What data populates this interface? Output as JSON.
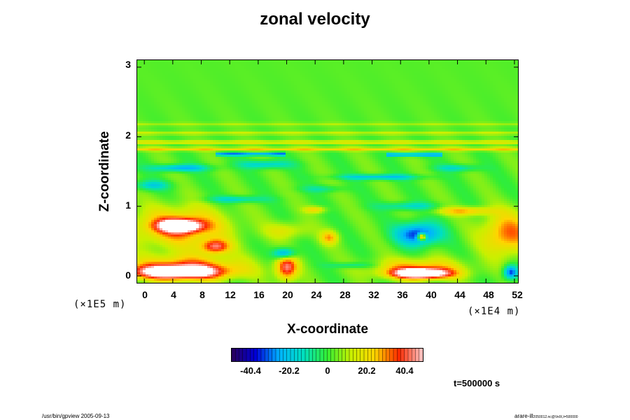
{
  "figure": {
    "title": "zonal velocity",
    "time_label": "t=500000 s",
    "footer_left": "/usr/bin/gpview 2005-09-13",
    "footer_right": "arare-ill",
    "footer_right_small": "2050012.nc@VelX,t=500000"
  },
  "chart_data": {
    "type": "heatmap",
    "title": "zonal velocity",
    "xlabel": "X-coordinate",
    "ylabel": "Z-coordinate",
    "x_unit": "(×1E4 m)",
    "y_unit": "(×1E5 m)",
    "x_ticks": [
      "0",
      "4",
      "8",
      "12",
      "16",
      "20",
      "24",
      "28",
      "32",
      "36",
      "40",
      "44",
      "48",
      "52"
    ],
    "y_ticks": [
      "0",
      "1",
      "2",
      "3"
    ],
    "xlim": [
      -1,
      52.5
    ],
    "ylim": [
      -0.1,
      3.1
    ],
    "colorbar": {
      "ticks": [
        "-40.4",
        "-20.2",
        "0",
        "20.2",
        "40.4"
      ],
      "tick_values": [
        -40.4,
        -20.2,
        0,
        20.2,
        40.4
      ],
      "range": [
        -52,
        52
      ],
      "colormap": [
        "#2a0059",
        "#0000d8",
        "#00b4ff",
        "#00e0c0",
        "#33ee33",
        "#c8f000",
        "#ffd400",
        "#ff2a00",
        "#ffc8c8"
      ]
    },
    "background_value": 3,
    "features": [
      {
        "x": 4.5,
        "z": 0.05,
        "value": 55,
        "rx": 6.5,
        "rz": 0.1
      },
      {
        "x": 6.0,
        "z": 0.13,
        "value": 30,
        "rx": 8.0,
        "rz": 0.17
      },
      {
        "x": 5.0,
        "z": 0.72,
        "value": 55,
        "rx": 3.0,
        "rz": 0.09
      },
      {
        "x": 5.0,
        "z": 0.7,
        "value": 32,
        "rx": 6.5,
        "rz": 0.28
      },
      {
        "x": 10.0,
        "z": 0.42,
        "value": 38,
        "rx": 2.0,
        "rz": 0.1
      },
      {
        "x": 20.0,
        "z": 0.12,
        "value": 42,
        "rx": 1.5,
        "rz": 0.18
      },
      {
        "x": 19.7,
        "z": 0.32,
        "value": -38,
        "rx": 1.5,
        "rz": 0.08
      },
      {
        "x": 39.0,
        "z": 0.03,
        "value": 60,
        "rx": 4.0,
        "rz": 0.07
      },
      {
        "x": 38.5,
        "z": 0.1,
        "value": 30,
        "rx": 6.0,
        "rz": 0.14
      },
      {
        "x": 38.5,
        "z": 0.6,
        "value": -42,
        "rx": 3.0,
        "rz": 0.16
      },
      {
        "x": 39.0,
        "z": 0.56,
        "value": 55,
        "rx": 0.6,
        "rz": 0.05
      },
      {
        "x": 51.0,
        "z": 0.6,
        "value": 32,
        "rx": 3.5,
        "rz": 0.3
      },
      {
        "x": 45.0,
        "z": 0.93,
        "value": 25,
        "rx": 4.0,
        "rz": 0.06
      },
      {
        "x": 26.0,
        "z": 0.55,
        "value": 25,
        "rx": 1.2,
        "rz": 0.1
      },
      {
        "x": 20.0,
        "z": 0.65,
        "value": 15,
        "rx": 3.0,
        "rz": 0.12
      },
      {
        "x": 13.0,
        "z": 1.1,
        "value": -20,
        "rx": 4.0,
        "rz": 0.05
      },
      {
        "x": 5.0,
        "z": 1.55,
        "value": -28,
        "rx": 4.0,
        "rz": 0.05
      },
      {
        "x": 17.0,
        "z": 1.6,
        "value": -22,
        "rx": 3.5,
        "rz": 0.06
      },
      {
        "x": 33.0,
        "z": 1.42,
        "value": -26,
        "rx": 5.5,
        "rz": 0.04
      },
      {
        "x": 44.0,
        "z": 1.55,
        "value": -18,
        "rx": 3.0,
        "rz": 0.05
      },
      {
        "x": 37.0,
        "z": 1.0,
        "value": -18,
        "rx": 4.0,
        "rz": 0.06
      },
      {
        "x": 25.0,
        "z": 1.25,
        "value": -12,
        "rx": 3.0,
        "rz": 0.05
      },
      {
        "x": 1.0,
        "z": 1.3,
        "value": -20,
        "rx": 2.5,
        "rz": 0.07
      },
      {
        "x": 29.0,
        "z": 0.15,
        "value": -15,
        "rx": 3.0,
        "rz": 0.04
      },
      {
        "x": 51.5,
        "z": 0.05,
        "value": -40,
        "rx": 1.0,
        "rz": 0.1
      },
      {
        "x": 24.0,
        "z": 0.95,
        "value": 20,
        "rx": 1.5,
        "rz": 0.05
      }
    ],
    "bands": [
      {
        "z": 1.75,
        "value": -32,
        "x_from": 10,
        "x_to": 20
      },
      {
        "z": 1.74,
        "value": -30,
        "x_from": 34,
        "x_to": 42
      },
      {
        "z": 1.82,
        "value": 22,
        "x_from": -1,
        "x_to": 52.5
      },
      {
        "z": 1.92,
        "value": 16,
        "x_from": -1,
        "x_to": 52.5
      },
      {
        "z": 2.05,
        "value": 10,
        "x_from": -1,
        "x_to": 52.5
      },
      {
        "z": 2.18,
        "value": 7,
        "x_from": -1,
        "x_to": 52.5
      }
    ]
  }
}
